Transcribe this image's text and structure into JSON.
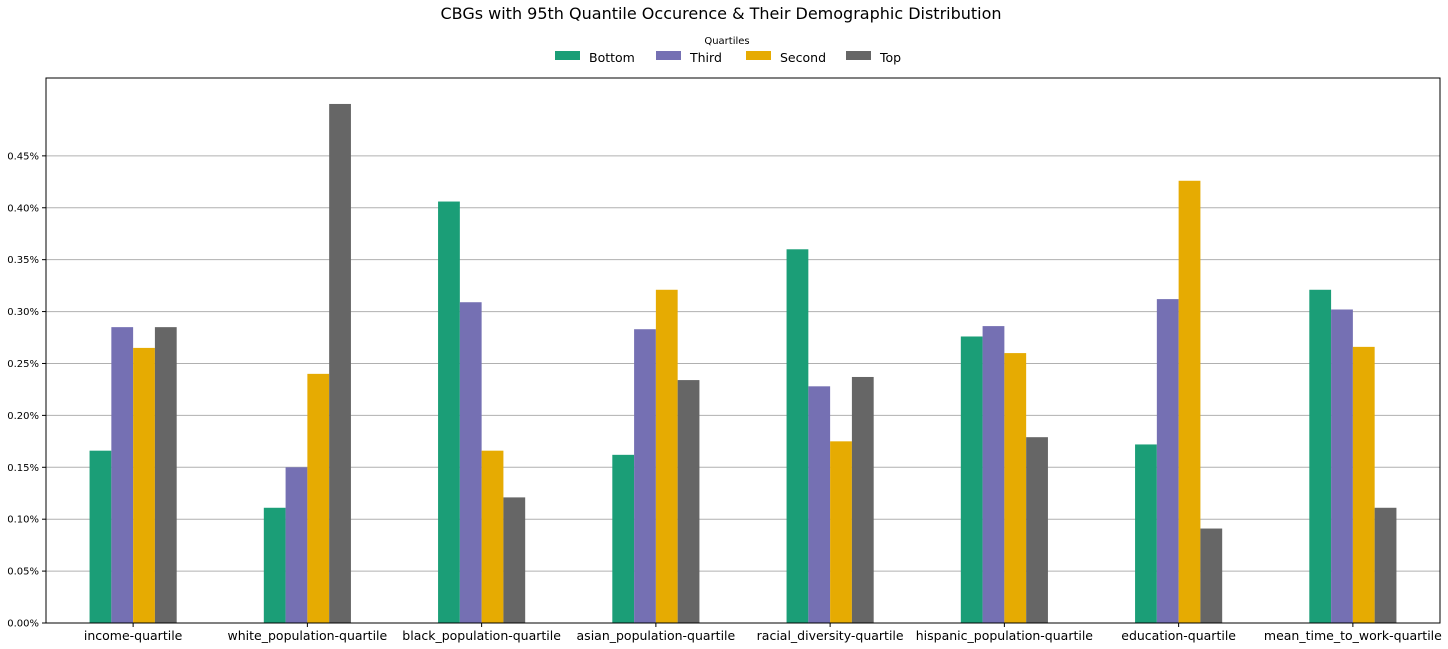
{
  "chart_data": {
    "type": "bar",
    "title": "CBGs with 95th Quantile Occurence & Their Demographic Distribution",
    "legend": {
      "title": "Quartiles",
      "placement": "top-center"
    },
    "categories": [
      "income-quartile",
      "white_population-quartile",
      "black_population-quartile",
      "asian_population-quartile",
      "racial_diversity-quartile",
      "hispanic_population-quartile",
      "education-quartile",
      "mean_time_to_work-quartile"
    ],
    "series": [
      {
        "name": "Bottom",
        "color": "#1b9e77",
        "values": [
          0.166,
          0.111,
          0.406,
          0.162,
          0.36,
          0.276,
          0.172,
          0.321
        ]
      },
      {
        "name": "Third",
        "color": "#7570b3",
        "values": [
          0.285,
          0.15,
          0.309,
          0.283,
          0.228,
          0.286,
          0.312,
          0.302
        ]
      },
      {
        "name": "Second",
        "color": "#e6ab02",
        "values": [
          0.265,
          0.24,
          0.166,
          0.321,
          0.175,
          0.26,
          0.426,
          0.266
        ]
      },
      {
        "name": "Top",
        "color": "#666666",
        "values": [
          0.285,
          0.5,
          0.121,
          0.234,
          0.237,
          0.179,
          0.091,
          0.111
        ]
      }
    ],
    "yticks": [
      0,
      0.05,
      0.1,
      0.15,
      0.2,
      0.25,
      0.3,
      0.35,
      0.4,
      0.45
    ],
    "ytick_labels": [
      "0.00%",
      "0.05%",
      "0.10%",
      "0.15%",
      "0.20%",
      "0.25%",
      "0.30%",
      "0.35%",
      "0.40%",
      "0.45%"
    ],
    "ylim": [
      0,
      0.525
    ],
    "grid": "y"
  }
}
